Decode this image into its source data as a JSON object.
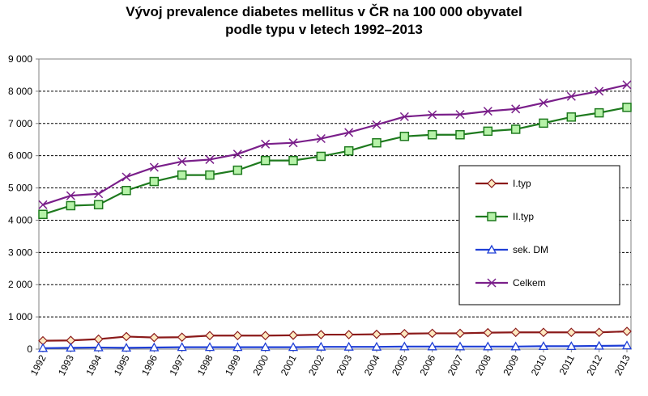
{
  "chart_data": {
    "type": "line",
    "title_line1": "Vývoj prevalence diabetes mellitus v ČR na 100 000 obyvatel",
    "title_line2": "podle typu v letech 1992–2013",
    "xlabel": "",
    "ylabel": "",
    "ylim": [
      0,
      9000
    ],
    "yticks": [
      0,
      1000,
      2000,
      3000,
      4000,
      5000,
      6000,
      7000,
      8000,
      9000
    ],
    "ytick_labels": [
      "0",
      "1 000",
      "2 000",
      "3 000",
      "4 000",
      "5 000",
      "6 000",
      "7 000",
      "8 000",
      "9 000"
    ],
    "grid": "horizontal",
    "legend_placement": "right",
    "categories": [
      "1992",
      "1993",
      "1994",
      "1995",
      "1996",
      "1997",
      "1998",
      "1999",
      "2000",
      "2001",
      "2002",
      "2003",
      "2004",
      "2005",
      "2006",
      "2007",
      "2008",
      "2009",
      "2010",
      "2011",
      "2012",
      "2013"
    ],
    "series": [
      {
        "name": "I.typ",
        "color": "#8b1a1a",
        "fill": "#fde9c0",
        "marker": "diamond",
        "values": [
          260,
          270,
          310,
          390,
          360,
          370,
          420,
          420,
          420,
          430,
          450,
          450,
          460,
          480,
          490,
          490,
          510,
          520,
          520,
          520,
          520,
          550
        ]
      },
      {
        "name": "II.typ",
        "color": "#1e7a1e",
        "fill": "#b6f2a8",
        "marker": "square",
        "values": [
          4180,
          4450,
          4480,
          4920,
          5200,
          5400,
          5400,
          5550,
          5850,
          5850,
          5980,
          6150,
          6400,
          6600,
          6650,
          6650,
          6760,
          6820,
          7010,
          7200,
          7330,
          7500
        ]
      },
      {
        "name": "sek. DM",
        "color": "#1f3fd6",
        "fill": "#ffffff",
        "marker": "triangle",
        "values": [
          30,
          40,
          50,
          40,
          50,
          60,
          60,
          60,
          60,
          60,
          70,
          70,
          70,
          80,
          80,
          80,
          80,
          80,
          90,
          90,
          100,
          110
        ]
      },
      {
        "name": "Celkem",
        "color": "#7a1f8a",
        "fill": "none",
        "marker": "x",
        "values": [
          4480,
          4760,
          4820,
          5340,
          5640,
          5820,
          5880,
          6050,
          6360,
          6400,
          6530,
          6720,
          6960,
          7210,
          7270,
          7280,
          7380,
          7450,
          7640,
          7840,
          8000,
          8200
        ]
      }
    ]
  }
}
